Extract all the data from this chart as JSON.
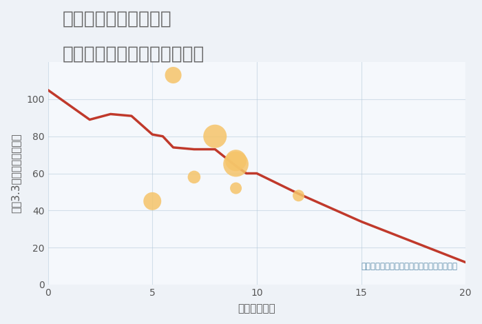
{
  "title_line1": "福岡県太宰府市石坂の",
  "title_line2": "駅距離別中古マンション価格",
  "xlabel": "駅距離（分）",
  "ylabel": "坪（3.3㎡）単価（万円）",
  "background_color": "#eef2f7",
  "plot_bg_color": "#f5f8fc",
  "line_x": [
    0,
    2,
    3,
    4,
    5,
    5.5,
    6,
    7,
    7.5,
    8,
    9,
    9.5,
    10,
    12,
    15,
    20
  ],
  "line_y": [
    105,
    89,
    92,
    91,
    81,
    80,
    74,
    73,
    73,
    73,
    64,
    60,
    60,
    49,
    34,
    12
  ],
  "line_color": "#c0392b",
  "line_width": 2.5,
  "scatter_x": [
    6,
    5,
    7,
    8,
    9,
    9,
    9,
    12
  ],
  "scatter_y": [
    113,
    45,
    58,
    80,
    65,
    67,
    52,
    48
  ],
  "scatter_sizes": [
    300,
    350,
    180,
    600,
    700,
    500,
    150,
    150
  ],
  "scatter_color": "#f5c469",
  "scatter_alpha": 0.85,
  "bubble_label": "円の大きさは、取引のあった物件面積を示す",
  "bubble_label_color": "#5b8caa",
  "xlim": [
    0,
    20
  ],
  "ylim": [
    0,
    120
  ],
  "xticks": [
    0,
    5,
    10,
    15,
    20
  ],
  "yticks": [
    0,
    20,
    40,
    60,
    80,
    100
  ],
  "grid_color": "#b0c8d8",
  "grid_alpha": 0.5,
  "title_color": "#666666",
  "title_fontsize": 19,
  "axis_label_fontsize": 11,
  "tick_fontsize": 10
}
